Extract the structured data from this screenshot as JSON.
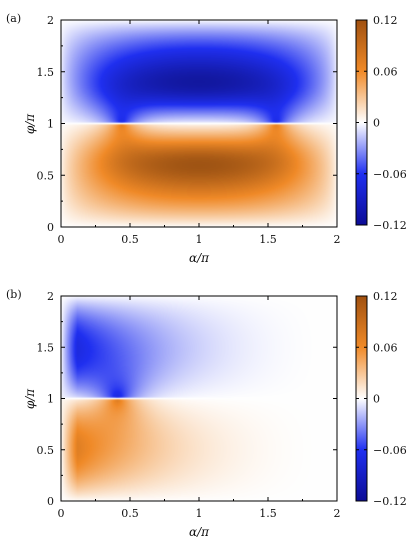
{
  "chart_data": [
    {
      "type": "heatmap",
      "panel_label": "(a)",
      "xlabel": "α/π",
      "ylabel": "φ/π",
      "xlim": [
        0,
        2
      ],
      "ylim": [
        0,
        2
      ],
      "x_ticks": [
        "0",
        "0.5",
        "1",
        "1.5",
        "2"
      ],
      "y_ticks": [
        "0",
        "0.5",
        "1",
        "1.5",
        "2"
      ],
      "colorbar": {
        "range": [
          -0.12,
          0.12
        ],
        "ticks": [
          "0.12",
          "0.06",
          "0",
          "−0.06",
          "−0.12"
        ],
        "positive_color": "#a0500f",
        "mid_color": "#ffffff",
        "negative_color": "#0c0c96"
      },
      "features": {
        "singular_points_alpha": [
          0.44,
          1.56
        ],
        "singular_phi": 1.0,
        "sign": "negative above φ/π = 1, positive below"
      }
    },
    {
      "type": "heatmap",
      "panel_label": "(b)",
      "xlabel": "α/π",
      "ylabel": "φ/π",
      "xlim": [
        0,
        2
      ],
      "ylim": [
        0,
        2
      ],
      "x_ticks": [
        "0",
        "0.5",
        "1",
        "1.5",
        "2"
      ],
      "y_ticks": [
        "0",
        "0.5",
        "1",
        "1.5",
        "2"
      ],
      "colorbar": {
        "range": [
          -0.12,
          0.12
        ],
        "ticks": [
          "0.12",
          "0.06",
          "0",
          "−0.06",
          "−0.12"
        ],
        "positive_color": "#a0500f",
        "mid_color": "#ffffff",
        "negative_color": "#0c0c96"
      },
      "features": {
        "singular_points_alpha": [
          0.41
        ],
        "singular_phi": 1.0,
        "sign": "negative above φ/π = 1, positive below"
      }
    }
  ]
}
